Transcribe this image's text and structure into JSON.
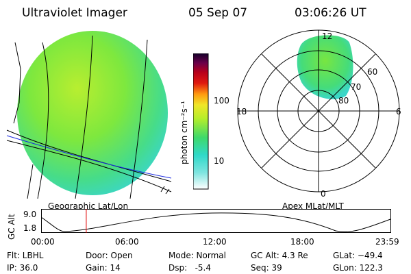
{
  "header": {
    "instrument": "Ultraviolet Imager",
    "date": "05 Sep 07",
    "time": "03:06:26 UT"
  },
  "colorbar": {
    "label": "photon cm⁻²s⁻¹",
    "ticks": [
      "100",
      "10"
    ],
    "scale": "log"
  },
  "left_panel": {
    "caption": "Geographic Lat/Lon"
  },
  "polar_panel": {
    "caption": "Apex MLat/MLT",
    "mlt_labels": {
      "top": "12",
      "left": "18",
      "right": "6",
      "bottom": "0"
    },
    "lat_labels": [
      "60",
      "70",
      "80"
    ]
  },
  "altitude_plot": {
    "ylabel": "GC Alt",
    "ymax_label": "9.0",
    "ymin_label": "1.8",
    "x_ticks": [
      "00:00",
      "06:00",
      "12:00",
      "18:00",
      "23:59"
    ],
    "marker_time": "03:06",
    "marker_color": "#e00000"
  },
  "footer": {
    "col1": [
      "Flt: LBHL",
      "IP: 36.0"
    ],
    "col2": [
      "Door: Open",
      "Gain: 14"
    ],
    "col3": [
      "Mode: Normal",
      "Dsp:   -5.4"
    ],
    "col4": [
      "GC Alt: 4.3 Re",
      "Seq: 39"
    ],
    "col5": [
      "GLat: −49.4",
      "GLon: 122.3"
    ]
  },
  "colors": {
    "aurora_green": "#4ee06a",
    "aurora_cyan": "#3fd9c8",
    "aurora_yellow": "#c8ee2a",
    "coast_blue": "#1a2ae0"
  }
}
